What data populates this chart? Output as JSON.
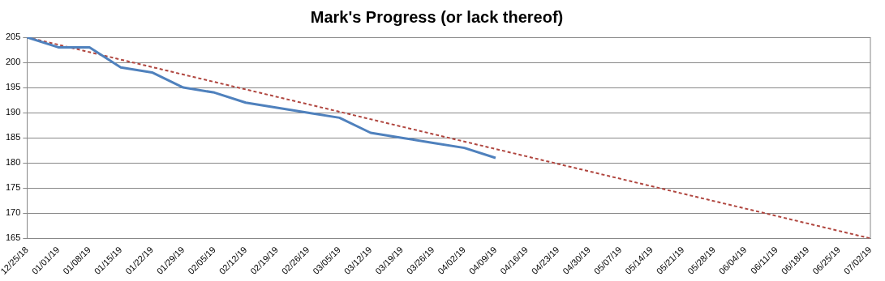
{
  "chart_data": {
    "type": "line",
    "title": "Mark's Progress (or lack thereof)",
    "categories": [
      "12/25/18",
      "01/01/19",
      "01/08/19",
      "01/15/19",
      "01/22/19",
      "01/29/19",
      "02/05/19",
      "02/12/19",
      "02/19/19",
      "02/26/19",
      "03/05/19",
      "03/12/19",
      "03/19/19",
      "03/26/19",
      "04/02/19",
      "04/09/19",
      "04/16/19",
      "04/23/19",
      "04/30/19",
      "05/07/19",
      "05/14/19",
      "05/21/19",
      "05/28/19",
      "06/04/19",
      "06/11/19",
      "06/18/19",
      "06/25/19",
      "07/02/19"
    ],
    "series": [
      {
        "color": "#4f81bd",
        "line_style": "solid",
        "values": [
          205,
          203,
          203,
          199,
          198,
          195,
          194,
          192,
          191,
          190,
          189,
          186,
          185,
          184,
          183,
          181,
          null,
          null,
          null,
          null,
          null,
          null,
          null,
          null,
          null,
          null,
          null,
          null
        ]
      },
      {
        "color": "#b0463f",
        "line_style": "dashed",
        "values": [
          205,
          null,
          null,
          null,
          null,
          null,
          null,
          null,
          null,
          null,
          null,
          null,
          null,
          null,
          null,
          null,
          null,
          null,
          null,
          null,
          null,
          null,
          null,
          null,
          null,
          null,
          null,
          165
        ]
      }
    ],
    "ylim": [
      165,
      205
    ],
    "yticks": [
      165,
      170,
      175,
      180,
      185,
      190,
      195,
      200,
      205
    ],
    "grid": "y",
    "legend": false,
    "marker": "none"
  }
}
